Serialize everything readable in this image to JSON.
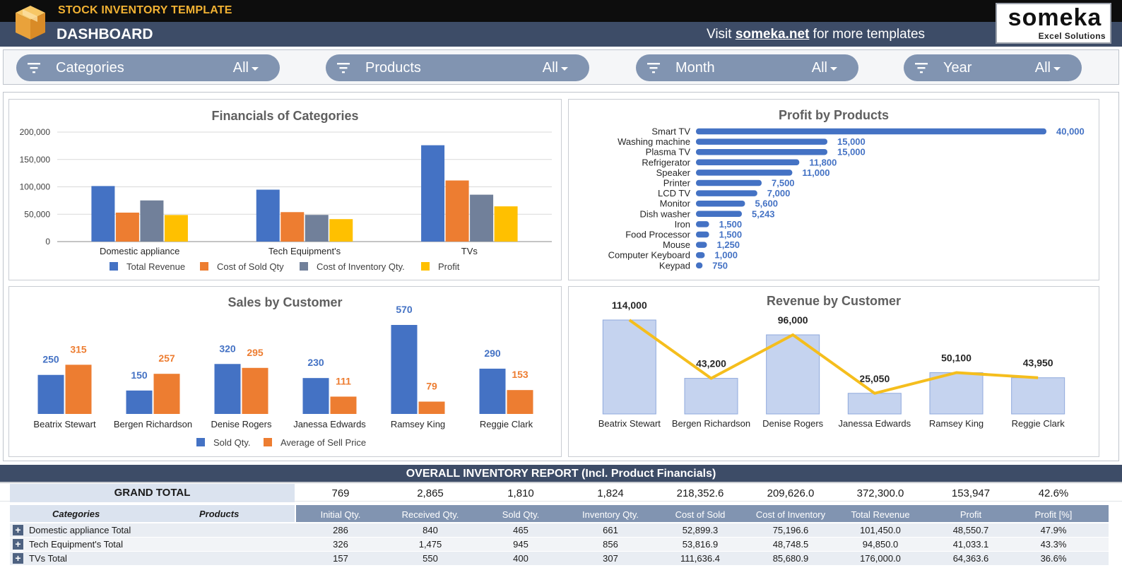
{
  "header": {
    "app_title": "STOCK INVENTORY TEMPLATE",
    "page_title": "DASHBOARD",
    "visit_prefix": "Visit ",
    "visit_link": "someka.net",
    "visit_suffix": " for more templates",
    "logo_brand": "someka",
    "logo_sub": "Excel Solutions"
  },
  "filters": [
    {
      "label": "Categories",
      "value": "All"
    },
    {
      "label": "Products",
      "value": "All"
    },
    {
      "label": "Month",
      "value": "All"
    },
    {
      "label": "Year",
      "value": "All"
    }
  ],
  "chart_data": [
    {
      "id": "financials",
      "type": "bar",
      "title": "Financials of Categories",
      "categories": [
        "Domestic appliance",
        "Tech Equipment's",
        "TVs"
      ],
      "series": [
        {
          "name": "Total Revenue",
          "color": "#4472c4",
          "values": [
            101450,
            94850,
            176000
          ]
        },
        {
          "name": "Cost of Sold Qty",
          "color": "#ed7d31",
          "values": [
            52899.3,
            53816.9,
            111636.4
          ]
        },
        {
          "name": "Cost of Inventory Qty.",
          "color": "#71809a",
          "values": [
            75196.6,
            48748.5,
            85680.9
          ]
        },
        {
          "name": "Profit",
          "color": "#ffc000",
          "values": [
            48550.7,
            41033.1,
            64363.6
          ]
        }
      ],
      "ylim": [
        0,
        200000
      ],
      "yticks": [
        "0",
        "50,000",
        "100,000",
        "150,000",
        "200,000"
      ],
      "grid": true,
      "legend": "bottom"
    },
    {
      "id": "profit_products",
      "type": "bar",
      "orientation": "horizontal",
      "title": "Profit by Products",
      "color": "#4472c4",
      "categories": [
        "Smart TV",
        "Washing machine",
        "Plasma TV",
        "Refrigerator",
        "Speaker",
        "Printer",
        "LCD TV",
        "Monitor",
        "Dish washer",
        "Iron",
        "Food Processor",
        "Mouse",
        "Computer Keyboard",
        "Keypad"
      ],
      "values": [
        40000,
        15000,
        15000,
        11800,
        11000,
        7500,
        7000,
        5600,
        5243,
        1500,
        1500,
        1250,
        1000,
        750
      ],
      "labels": [
        "40,000",
        "15,000",
        "15,000",
        "11,800",
        "11,000",
        "7,500",
        "7,000",
        "5,600",
        "5,243",
        "1,500",
        "1,500",
        "1,250",
        "1,000",
        "750"
      ]
    },
    {
      "id": "sales_customer",
      "type": "bar",
      "title": "Sales by Customer",
      "categories": [
        "Beatrix Stewart",
        "Bergen Richardson",
        "Denise Rogers",
        "Janessa Edwards",
        "Ramsey King",
        "Reggie Clark"
      ],
      "series": [
        {
          "name": "Sold Qty.",
          "color": "#4472c4",
          "values": [
            250,
            150,
            320,
            230,
            570,
            290
          ]
        },
        {
          "name": "Average of Sell Price",
          "color": "#ed7d31",
          "values": [
            315,
            257,
            295,
            111,
            79,
            153
          ]
        }
      ],
      "legend": "bottom"
    },
    {
      "id": "revenue_customer",
      "type": "bar",
      "title": "Revenue by Customer",
      "categories": [
        "Beatrix Stewart",
        "Bergen Richardson",
        "Denise Rogers",
        "Janessa Edwards",
        "Ramsey King",
        "Reggie Clark"
      ],
      "values": [
        114000,
        43200,
        96000,
        25050,
        50100,
        43950
      ],
      "labels": [
        "114,000",
        "43,200",
        "96,000",
        "25,050",
        "50,100",
        "43,950"
      ],
      "bar_color": "#c5d3ef",
      "line_color": "#f5be1d"
    }
  ],
  "report": {
    "title": "OVERALL INVENTORY REPORT (Incl. Product Financials)",
    "grand_total_label": "GRAND TOTAL",
    "grand_total": [
      "769",
      "2,865",
      "1,810",
      "1,824",
      "218,352.6",
      "209,626.0",
      "372,300.0",
      "153,947",
      "42.6%"
    ],
    "label_headers": [
      "Categories",
      "Products"
    ],
    "columns": [
      "Initial Qty.",
      "Received Qty.",
      "Sold Qty.",
      "Inventory Qty.",
      "Cost of Sold",
      "Cost of Inventory",
      "Total Revenue",
      "Profit",
      "Profit [%]"
    ],
    "rows": [
      {
        "label": "Domestic appliance Total",
        "values": [
          "286",
          "840",
          "465",
          "661",
          "52,899.3",
          "75,196.6",
          "101,450.0",
          "48,550.7",
          "47.9%"
        ]
      },
      {
        "label": "Tech Equipment's Total",
        "values": [
          "326",
          "1,475",
          "945",
          "856",
          "53,816.9",
          "48,748.5",
          "94,850.0",
          "41,033.1",
          "43.3%"
        ]
      },
      {
        "label": "TVs Total",
        "values": [
          "157",
          "550",
          "400",
          "307",
          "111,636.4",
          "85,680.9",
          "176,000.0",
          "64,363.6",
          "36.6%"
        ]
      }
    ],
    "expand_symbol": "+"
  }
}
